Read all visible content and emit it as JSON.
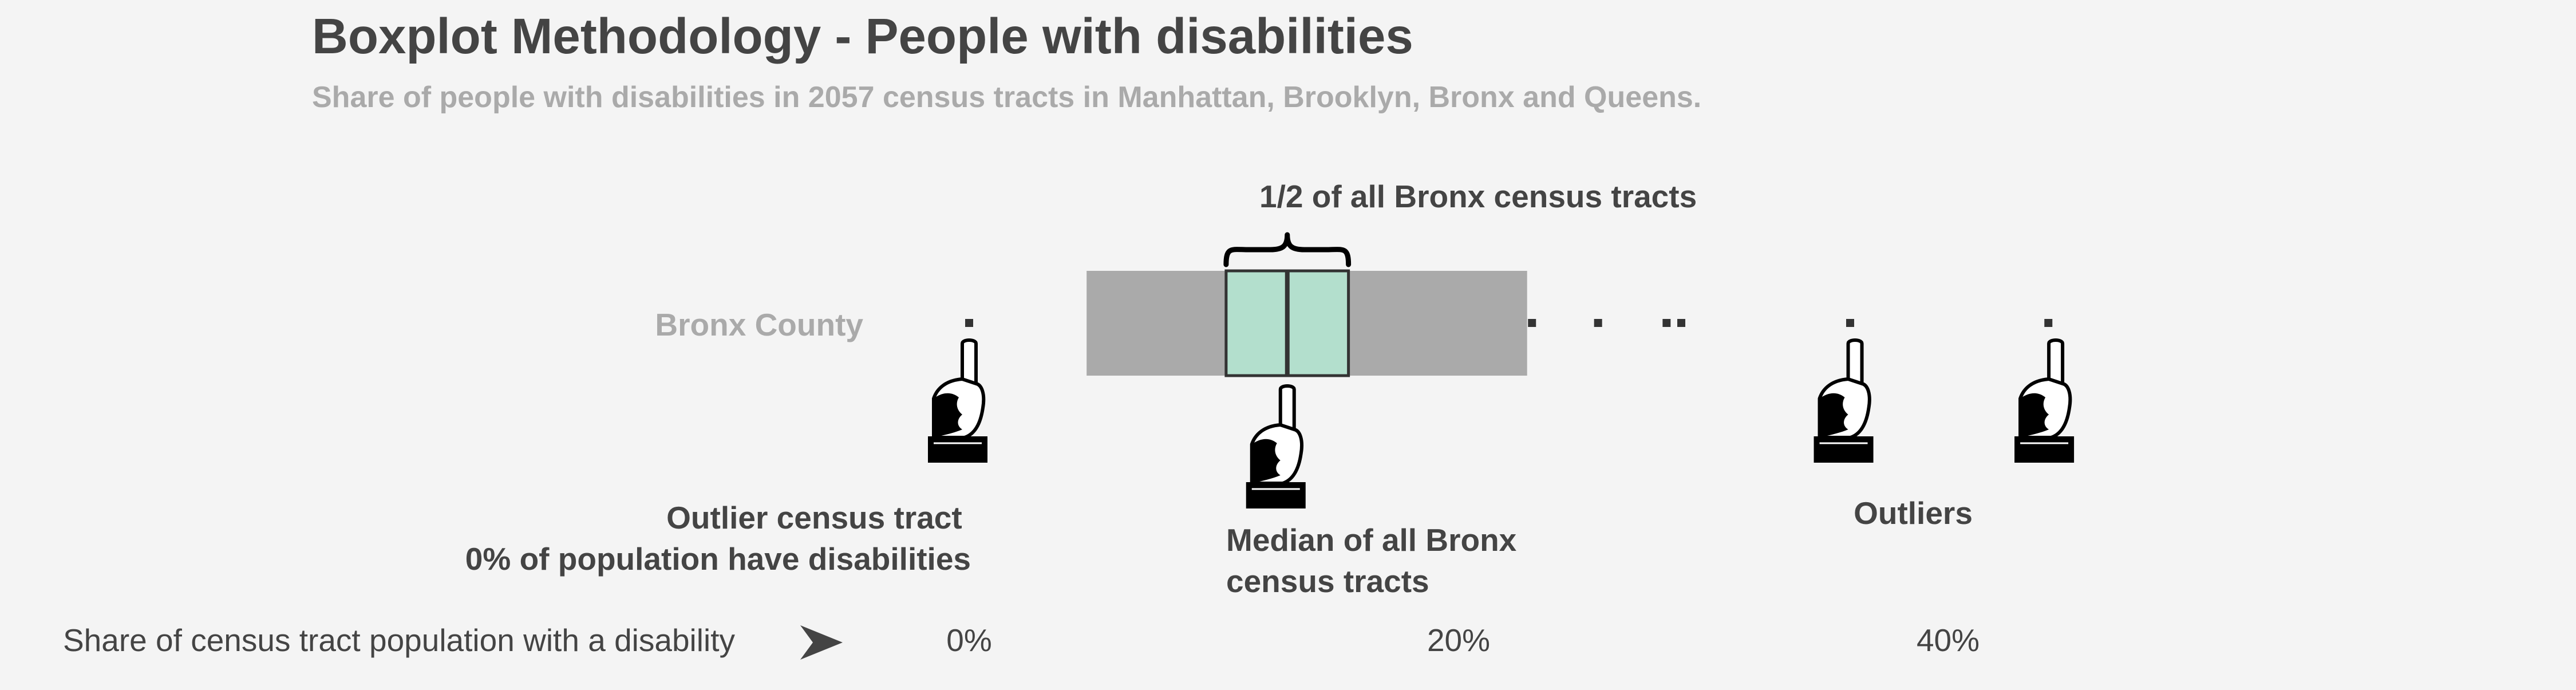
{
  "chart_data": {
    "type": "boxplot",
    "title": "Boxplot Methodology - People with disabilities",
    "subtitle": "Share of people with disabilities in 2057 census tracts in Manhattan, Brooklyn, Bronx and Queens.",
    "xlabel": "Share of census tract population with a disability",
    "xlim": [
      -4.8,
      50
    ],
    "x_ticks": [
      {
        "value": 0,
        "label": "0%"
      },
      {
        "value": 20,
        "label": "20%"
      },
      {
        "value": 40,
        "label": "40%"
      }
    ],
    "series": [
      {
        "name": "Bronx County",
        "range": [
          4.8,
          22.8
        ],
        "iqr": [
          10.5,
          15.5
        ],
        "median": 13.0,
        "points": [
          0.0,
          23.0,
          25.7,
          28.5,
          29.1,
          36.0,
          44.1
        ]
      }
    ],
    "colors": {
      "range": "#aaaaaa",
      "iqr": "#b3dfcd",
      "outline": "#333333",
      "points": "#333333"
    },
    "annotations": {
      "iqr_label": "1/2 of all Bronx census tracts",
      "median_label": [
        "Median of all Bronx",
        "census tracts"
      ],
      "outlier_min_label": [
        "Outlier census tract",
        "0% of population have disabilities"
      ],
      "outliers_label": "Outliers",
      "pointer_icon": "pointing-hand-icon",
      "axis_arrow_icon": "arrow-right-icon"
    }
  }
}
